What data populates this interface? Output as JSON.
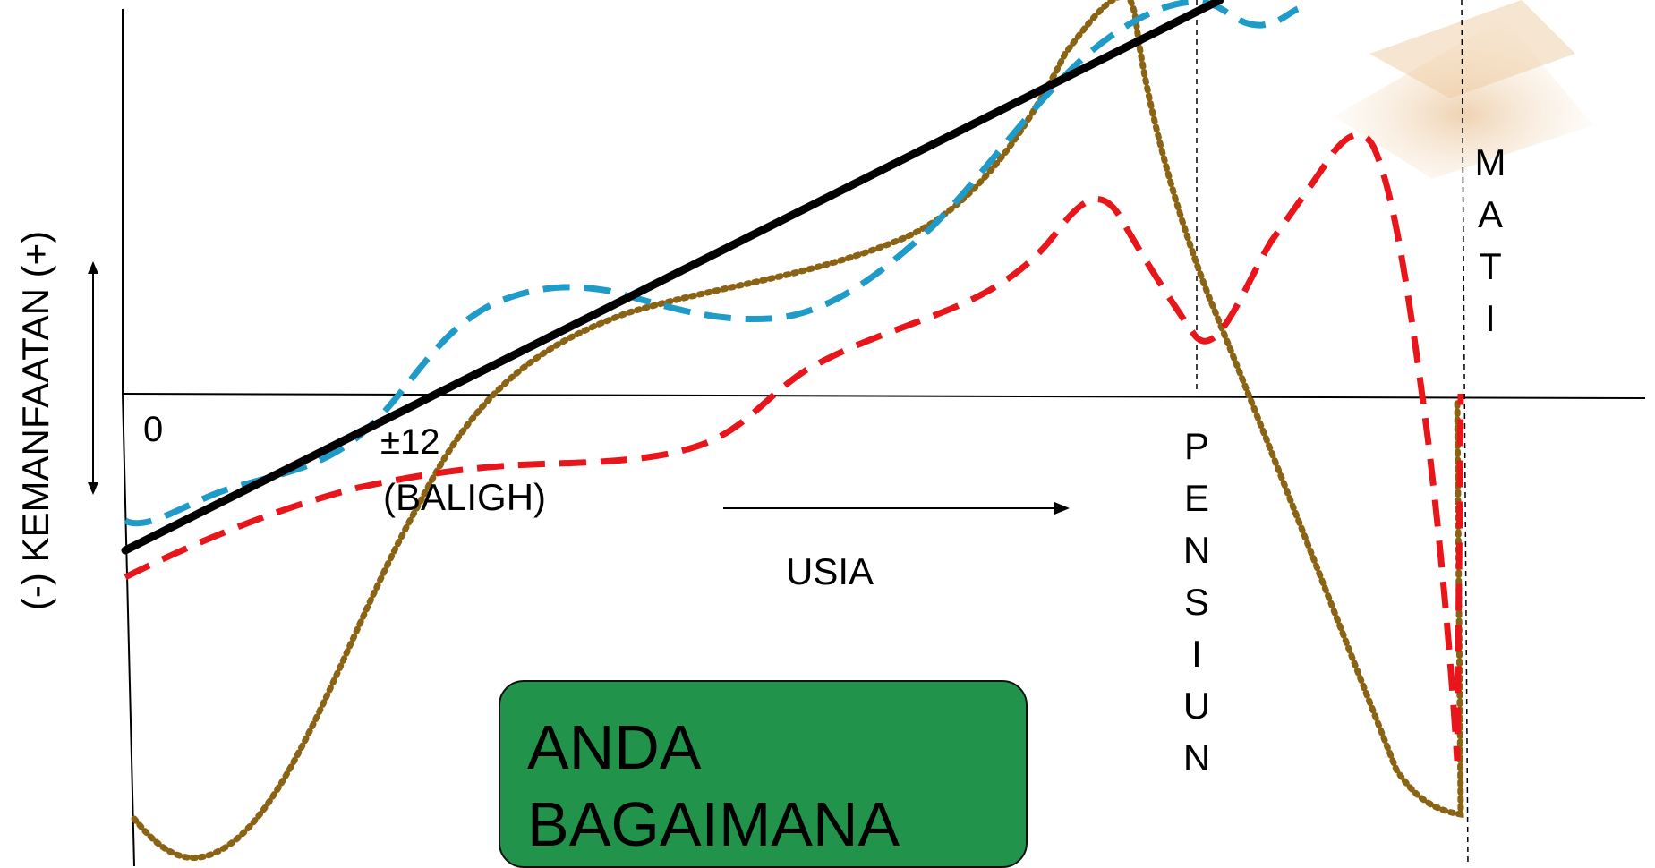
{
  "diagram": {
    "y_axis_label": "(-) KEMANFAATAN (+)",
    "x_axis_label": "USIA",
    "origin_label": "0",
    "baligh_age": "±12",
    "baligh_note": "(BALIGH)",
    "pensiun_label": [
      "P",
      "E",
      "N",
      "S",
      "I",
      "U",
      "N"
    ],
    "mati_label": [
      "M",
      "A",
      "T",
      "I"
    ],
    "callout_line1": "ANDA",
    "callout_line2": "BAGAIMANA",
    "colors": {
      "solid_line": "#000000",
      "blue_dashed": "#1e9bc8",
      "red_dashed": "#e8161b",
      "brown_dotted": "#8a6414",
      "callout_fill": "#21934b",
      "watermark": "#e2a45a"
    }
  }
}
